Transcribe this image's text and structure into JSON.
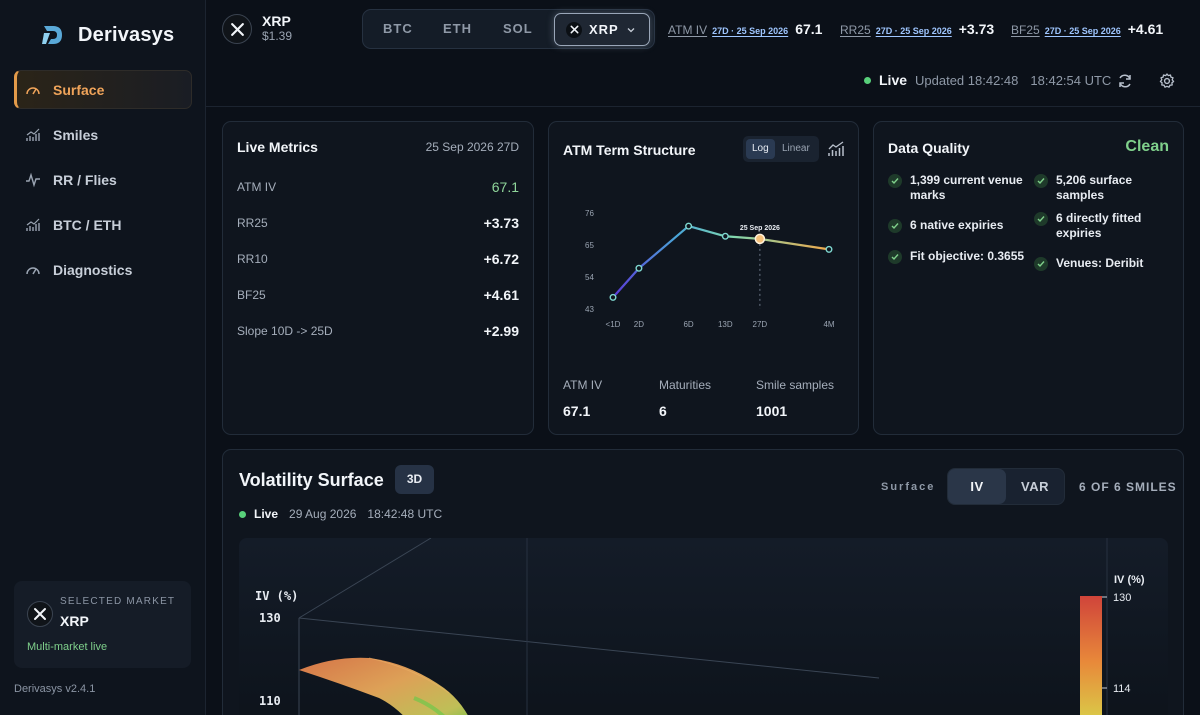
{
  "brand": {
    "name": "Derivasys"
  },
  "sidebar": {
    "items": [
      {
        "label": "Surface",
        "icon": "gauge-icon",
        "active": true
      },
      {
        "label": "Smiles",
        "icon": "bar-chart-icon"
      },
      {
        "label": "RR / Flies",
        "icon": "pulse-icon"
      },
      {
        "label": "BTC / ETH",
        "icon": "bar-chart-icon"
      },
      {
        "label": "Diagnostics",
        "icon": "gauge-icon"
      }
    ],
    "selected_market": {
      "label": "SELECTED MARKET",
      "name": "XRP",
      "status": "Multi-market live"
    },
    "version": "Derivasys v2.4.1"
  },
  "header": {
    "asset": {
      "name": "XRP",
      "price": "$1.39"
    },
    "switcher": {
      "options": [
        "BTC",
        "ETH",
        "SOL"
      ],
      "active": "XRP"
    },
    "metrics": [
      {
        "label": "ATM IV",
        "date": "27D · 25 Sep 2026",
        "value": "67.1"
      },
      {
        "label": "RR25",
        "date": "27D · 25 Sep 2026",
        "value": "+3.73"
      },
      {
        "label": "BF25",
        "date": "27D · 25 Sep 2026",
        "value": "+4.61"
      }
    ],
    "status": {
      "live": "Live",
      "updated": "Updated 18:42:48",
      "time": "18:42:54 UTC"
    }
  },
  "live_metrics": {
    "title": "Live Metrics",
    "date": "25 Sep 2026 27D",
    "rows": [
      {
        "label": "ATM IV",
        "value": "67.1"
      },
      {
        "label": "RR25",
        "value": "+3.73"
      },
      {
        "label": "RR10",
        "value": "+6.72"
      },
      {
        "label": "BF25",
        "value": "+4.61"
      },
      {
        "label": "Slope 10D -> 25D",
        "value": "+2.99"
      }
    ]
  },
  "term_structure": {
    "title": "ATM Term Structure",
    "scale_options": [
      "Log",
      "Linear"
    ],
    "active_scale": "Log",
    "stats": [
      {
        "label": "ATM IV",
        "value": "67.1"
      },
      {
        "label": "Maturities",
        "value": "6"
      },
      {
        "label": "Smile samples",
        "value": "1001"
      }
    ]
  },
  "chart_data": {
    "type": "line",
    "title": "ATM Term Structure",
    "x": [
      "<1D",
      "2D",
      "6D",
      "13D",
      "27D",
      "4M"
    ],
    "values": [
      47,
      57,
      71.5,
      68,
      67.1,
      63.5
    ],
    "yticks": [
      43,
      54,
      65,
      76
    ],
    "ylim": [
      43,
      76
    ],
    "xscale": "log",
    "highlight": {
      "index": 4,
      "label": "25 Sep 2026"
    },
    "grid": false
  },
  "data_quality": {
    "title": "Data Quality",
    "status": "Clean",
    "items": [
      "1,399 current venue marks",
      "5,206 surface samples",
      "6 native expiries",
      "6 directly fitted expiries",
      "Fit objective: 0.3655",
      "Venues: Deribit"
    ]
  },
  "surface": {
    "title": "Volatility Surface",
    "badge": "3D",
    "status": {
      "live": "Live",
      "date": "29 Aug 2026",
      "time": "18:42:48 UTC"
    },
    "toggle_label": "Surface",
    "toggle_options": [
      "IV",
      "VAR"
    ],
    "active_toggle": "IV",
    "smiles_count": "6 OF 6 SMILES",
    "axis": {
      "label": "IV (%)",
      "ticks": [
        "130",
        "110"
      ]
    },
    "colorbar": {
      "label": "IV (%)",
      "ticks": [
        "130",
        "114"
      ]
    }
  },
  "colors": {
    "accent": "#e39b4a",
    "live": "#58d07a",
    "clean": "#7fd08b",
    "link": "#9fc6ff"
  }
}
